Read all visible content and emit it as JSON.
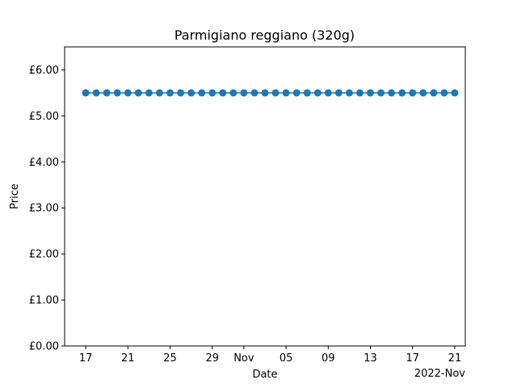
{
  "chart_data": {
    "type": "line",
    "title": "Parmigiano reggiano (320g)",
    "xlabel": "Date",
    "ylabel": "Price",
    "x_offset_label": "2022-Nov",
    "ylim": [
      0,
      6.5
    ],
    "xlim": [
      "2022-10-15T00:00",
      "2022-11-22T00:00"
    ],
    "grid": false,
    "legend": "none",
    "y_ticks": [
      {
        "value": 0,
        "label": "£0.00"
      },
      {
        "value": 1,
        "label": "£1.00"
      },
      {
        "value": 2,
        "label": "£2.00"
      },
      {
        "value": 3,
        "label": "£3.00"
      },
      {
        "value": 4,
        "label": "£4.00"
      },
      {
        "value": 5,
        "label": "£5.00"
      },
      {
        "value": 6,
        "label": "£6.00"
      }
    ],
    "x_ticks": [
      {
        "value": "2022-10-17",
        "label": "17"
      },
      {
        "value": "2022-10-21",
        "label": "21"
      },
      {
        "value": "2022-10-25",
        "label": "25"
      },
      {
        "value": "2022-10-29",
        "label": "29"
      },
      {
        "value": "2022-11-01",
        "label": "Nov"
      },
      {
        "value": "2022-11-05",
        "label": "05"
      },
      {
        "value": "2022-11-09",
        "label": "09"
      },
      {
        "value": "2022-11-13",
        "label": "13"
      },
      {
        "value": "2022-11-17",
        "label": "17"
      },
      {
        "value": "2022-11-21",
        "label": "21"
      }
    ],
    "series": [
      {
        "color": "#1f77b4",
        "x": [
          "2022-10-17",
          "2022-10-18",
          "2022-10-19",
          "2022-10-20",
          "2022-10-21",
          "2022-10-22",
          "2022-10-23",
          "2022-10-24",
          "2022-10-25",
          "2022-10-26",
          "2022-10-27",
          "2022-10-28",
          "2022-10-29",
          "2022-10-30",
          "2022-10-31",
          "2022-11-01",
          "2022-11-02",
          "2022-11-03",
          "2022-11-04",
          "2022-11-05",
          "2022-11-06",
          "2022-11-07",
          "2022-11-08",
          "2022-11-09",
          "2022-11-10",
          "2022-11-11",
          "2022-11-12",
          "2022-11-13",
          "2022-11-14",
          "2022-11-15",
          "2022-11-16",
          "2022-11-17",
          "2022-11-18",
          "2022-11-19",
          "2022-11-20",
          "2022-11-21"
        ],
        "y": [
          5.5,
          5.5,
          5.5,
          5.5,
          5.5,
          5.5,
          5.5,
          5.5,
          5.5,
          5.5,
          5.5,
          5.5,
          5.5,
          5.5,
          5.5,
          5.5,
          5.5,
          5.5,
          5.5,
          5.5,
          5.5,
          5.5,
          5.5,
          5.5,
          5.5,
          5.5,
          5.5,
          5.5,
          5.5,
          5.5,
          5.5,
          5.5,
          5.5,
          5.5,
          5.5,
          5.5
        ]
      }
    ]
  }
}
